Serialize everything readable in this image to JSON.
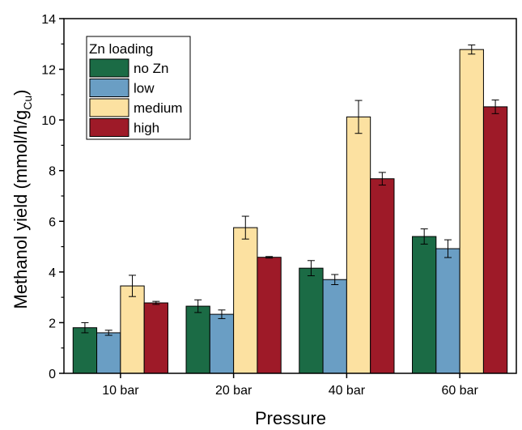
{
  "chart_data": {
    "type": "bar",
    "categories": [
      "10 bar",
      "20 bar",
      "40 bar",
      "60 bar"
    ],
    "xlabel": "Pressure",
    "ylabel_main": "Methanol yield (mmol/h/g",
    "ylabel_sub": "Cu",
    "ylabel_end": ")",
    "ylim": [
      0,
      14
    ],
    "yticks": [
      0,
      2,
      4,
      6,
      8,
      10,
      12,
      14
    ],
    "legend_title": "Zn loading",
    "legend_position": "top-left",
    "grid": false,
    "series": [
      {
        "name": "no Zn",
        "color": "#1b6b45",
        "values": [
          1.8,
          2.65,
          4.15,
          5.4
        ],
        "errors": [
          0.2,
          0.25,
          0.3,
          0.3
        ]
      },
      {
        "name": "low",
        "color": "#6a9ec4",
        "values": [
          1.6,
          2.33,
          3.7,
          4.92
        ],
        "errors": [
          0.1,
          0.17,
          0.2,
          0.35
        ]
      },
      {
        "name": "medium",
        "color": "#fce1a1",
        "values": [
          3.45,
          5.75,
          10.12,
          12.78
        ],
        "errors": [
          0.42,
          0.45,
          0.65,
          0.18
        ]
      },
      {
        "name": "high",
        "color": "#9e1a28",
        "values": [
          2.78,
          4.58,
          7.68,
          10.52
        ],
        "errors": [
          0.06,
          0.03,
          0.25,
          0.27
        ]
      }
    ]
  }
}
